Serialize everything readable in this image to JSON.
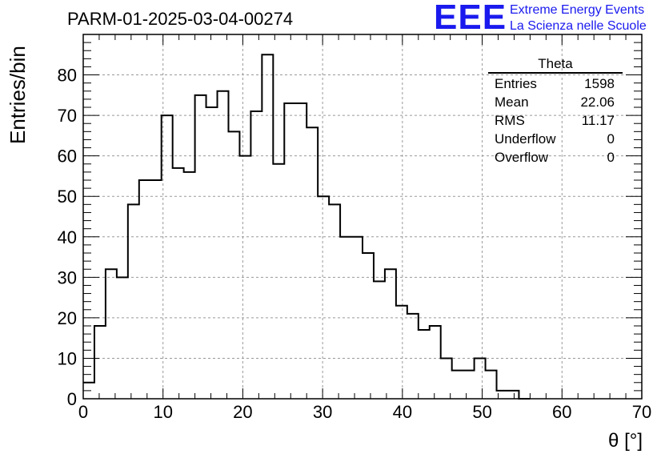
{
  "header": {
    "title": "PARM-01-2025-03-04-00274",
    "logo_mark": "EEE",
    "logo_line1": "Extreme Energy Events",
    "logo_line2": "La Scienza nelle Scuole"
  },
  "stats_box": {
    "title": "Theta",
    "rows": [
      {
        "label": "Entries",
        "value": "1598"
      },
      {
        "label": "Mean",
        "value": "22.06"
      },
      {
        "label": "RMS",
        "value": "11.17"
      },
      {
        "label": "Underflow",
        "value": "0"
      },
      {
        "label": "Overflow",
        "value": "0"
      }
    ]
  },
  "colors": {
    "line": "#000000",
    "grid": "#999999",
    "logo": "#1a1aee"
  },
  "chart_data": {
    "type": "histogram",
    "title": "PARM-01-2025-03-04-00274",
    "xlabel": "θ [°]",
    "ylabel": "Entries/bin",
    "xlim": [
      0,
      70
    ],
    "ylim": [
      0,
      90
    ],
    "grid": true,
    "legend": "top-right",
    "bin_width": 1.4,
    "bin_start": 0,
    "x_ticks": [
      0,
      10,
      20,
      30,
      40,
      50,
      60,
      70
    ],
    "y_ticks": [
      0,
      10,
      20,
      30,
      40,
      50,
      60,
      70,
      80
    ],
    "values": [
      4,
      18,
      32,
      30,
      48,
      54,
      54,
      70,
      57,
      56,
      75,
      72,
      76,
      66,
      60,
      71,
      85,
      58,
      73,
      73,
      67,
      50,
      48,
      40,
      40,
      36,
      29,
      32,
      23,
      21,
      17,
      18,
      10,
      7,
      7,
      10,
      7,
      2,
      2,
      0
    ]
  }
}
